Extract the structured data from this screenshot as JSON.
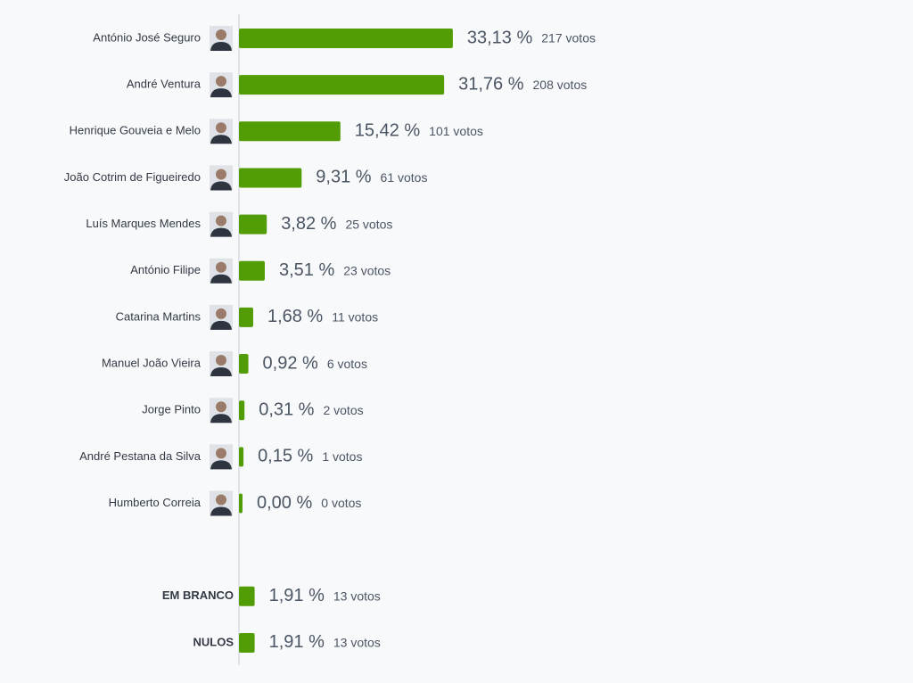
{
  "chart_data": {
    "type": "bar",
    "orientation": "horizontal",
    "color": "#529d05",
    "categories": [
      "António José Seguro",
      "André Ventura",
      "Henrique Gouveia e Melo",
      "João Cotrim de Figueiredo",
      "Luís Marques Mendes",
      "António Filipe",
      "Catarina Martins",
      "Manuel João Vieira",
      "Jorge Pinto",
      "André Pestana da Silva",
      "Humberto Correia",
      null,
      "EM BRANCO",
      "NULOS"
    ],
    "values": [
      33.13,
      31.76,
      15.42,
      9.31,
      3.82,
      3.51,
      1.68,
      0.92,
      0.31,
      0.15,
      0.0,
      null,
      1.91,
      1.91
    ],
    "value_labels": [
      "33,13 %",
      "31,76 %",
      "15,42 %",
      "9,31 %",
      "3,82 %",
      "3,51 %",
      "1,68 %",
      "0,92 %",
      "0,31 %",
      "0,15 %",
      "0,00 %",
      null,
      "1,91 %",
      "1,91 %"
    ],
    "vote_labels": [
      "217 votos",
      "208 votos",
      "101 votos",
      "61 votos",
      "25 votos",
      "23 votos",
      "11 votos",
      "6 votos",
      "2 votos",
      "1 votos",
      "0 votos",
      null,
      "13 votos",
      "13 votos"
    ],
    "photo": [
      true,
      true,
      true,
      true,
      true,
      true,
      true,
      true,
      true,
      true,
      true,
      false,
      false,
      false
    ]
  }
}
